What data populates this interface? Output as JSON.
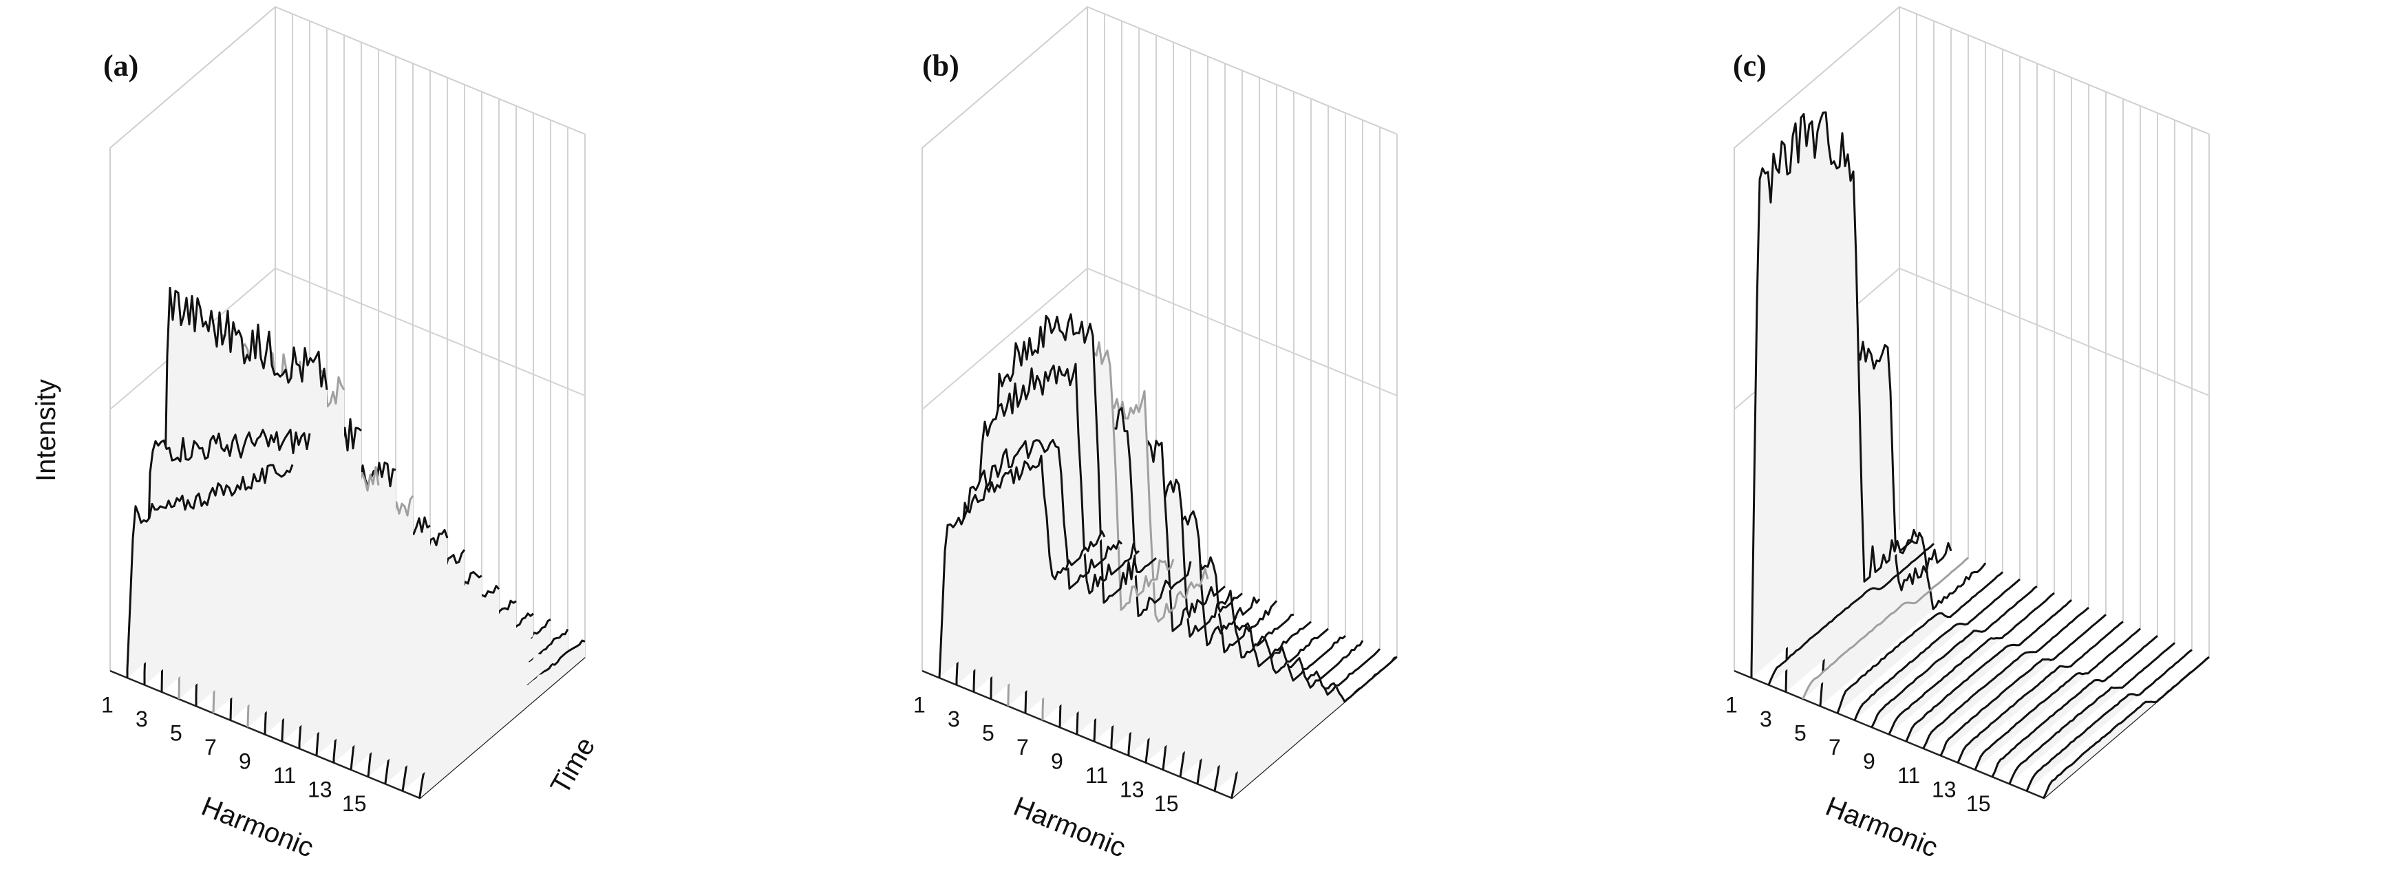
{
  "figure": {
    "panels": [
      {
        "label": "(a)"
      },
      {
        "label": "(b)"
      },
      {
        "label": "(c)"
      }
    ]
  },
  "chart_data": [
    {
      "type": "line",
      "panel": "(a)",
      "xlabel": "Harmonic",
      "ylabel": "Intensity",
      "zlabel": "Time",
      "x_tick_labels": [
        "1",
        "3",
        "5",
        "7",
        "9",
        "11",
        "13",
        "15"
      ],
      "harmonics": [
        1,
        2,
        3,
        4,
        5,
        6,
        7,
        8,
        9,
        10,
        11,
        12,
        13,
        14,
        15,
        16,
        17,
        18
      ],
      "time_range": [
        0,
        1
      ],
      "series_shape": "rise-peak-decay",
      "peak_intensity_relative": [
        0.3,
        0.45,
        0.75,
        0.7,
        0.55,
        0.4,
        0.45,
        0.35,
        0.3,
        0.28,
        0.22,
        0.18,
        0.15,
        0.12,
        0.1,
        0.09,
        0.08,
        0.07
      ],
      "gray_series_harmonics": [
        4,
        6,
        8
      ],
      "colors": {
        "line": "#111111",
        "gray_line": "#a0a0a0",
        "fill": "#f3f3f3",
        "grid": "#d2d2d2"
      }
    },
    {
      "type": "line",
      "panel": "(b)",
      "xlabel": "Harmonic",
      "ylabel": "",
      "zlabel": "",
      "x_tick_labels": [
        "1",
        "3",
        "5",
        "7",
        "9",
        "11",
        "13",
        "15"
      ],
      "harmonics": [
        1,
        2,
        3,
        4,
        5,
        6,
        7,
        8,
        9,
        10,
        11,
        12,
        13,
        14,
        15,
        16,
        17,
        18
      ],
      "time_range": [
        0,
        1
      ],
      "series_shape": "plateau",
      "peak_intensity_relative": [
        0.28,
        0.35,
        0.5,
        0.62,
        0.58,
        0.45,
        0.5,
        0.42,
        0.35,
        0.3,
        0.22,
        0.16,
        0.12,
        0.1,
        0.09,
        0.08,
        0.07,
        0.06
      ],
      "gray_series_harmonics": [
        5,
        7
      ],
      "colors": {
        "line": "#111111",
        "gray_line": "#a0a0a0",
        "fill": "#f3f3f3",
        "grid": "#d2d2d2"
      }
    },
    {
      "type": "line",
      "panel": "(c)",
      "xlabel": "Harmonic",
      "ylabel": "",
      "zlabel": "",
      "x_tick_labels": [
        "1",
        "3",
        "5",
        "7",
        "9",
        "11",
        "13",
        "15"
      ],
      "harmonics": [
        1,
        2,
        3,
        4,
        5,
        6,
        7,
        8,
        9,
        10,
        11,
        12,
        13,
        14,
        15,
        16,
        17,
        18
      ],
      "time_range": [
        0,
        1
      ],
      "series_shape": "plateau",
      "peak_intensity_relative": [
        0.95,
        0.02,
        0.55,
        0.02,
        0.18,
        0.03,
        0.02,
        0.02,
        0.02,
        0.02,
        0.02,
        0.02,
        0.02,
        0.02,
        0.02,
        0.02,
        0.02,
        0.02
      ],
      "gray_series_harmonics": [
        4
      ],
      "colors": {
        "line": "#111111",
        "gray_line": "#a0a0a0",
        "fill": "#f3f3f3",
        "grid": "#d2d2d2"
      }
    }
  ]
}
